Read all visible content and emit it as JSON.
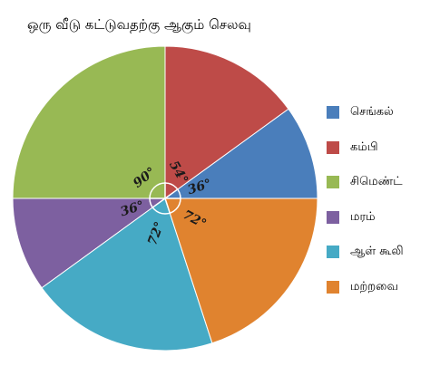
{
  "chart_data": {
    "type": "pie",
    "title": "ஒரு வீடு கட்டுவதற்கு ஆகும் செலவு",
    "start": "3 o'clock, counter-clockwise",
    "slices": [
      {
        "name": "செங்கல்",
        "value": 36,
        "label": "36°",
        "color": "#4a7ebb"
      },
      {
        "name": "கம்பி",
        "value": 54,
        "label": "54°",
        "color": "#be4b48"
      },
      {
        "name": "சிமெண்ட்",
        "value": 90,
        "label": "90°",
        "color": "#98b954"
      },
      {
        "name": "மரம்",
        "value": 36,
        "label": "36°",
        "color": "#7d60a0"
      },
      {
        "name": "ஆள் கூலி",
        "value": 72,
        "label": "72°",
        "color": "#46aac5"
      },
      {
        "name": "மற்றவை",
        "value": 72,
        "label": "72°",
        "color": "#e0832f"
      }
    ],
    "legend_position": "right"
  }
}
